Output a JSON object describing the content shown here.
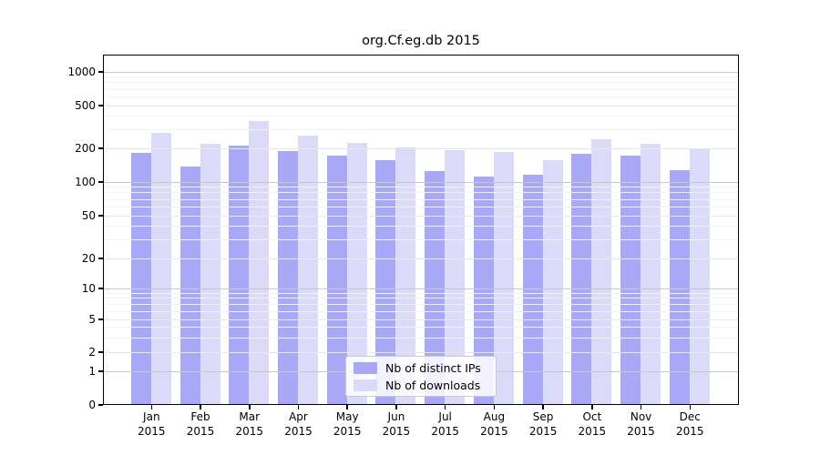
{
  "chart_data": {
    "type": "bar",
    "title": "org.Cf.eg.db 2015",
    "categories": [
      "Jan",
      "Feb",
      "Mar",
      "Apr",
      "May",
      "Jun",
      "Jul",
      "Aug",
      "Sep",
      "Oct",
      "Nov",
      "Dec"
    ],
    "year_label": "2015",
    "series": [
      {
        "name": "Nb of distinct IPs",
        "color": "#a8a8f7",
        "values": [
          180,
          134,
          210,
          184,
          168,
          155,
          123,
          110,
          114,
          175,
          170,
          125
        ]
      },
      {
        "name": "Nb of downloads",
        "color": "#dbdbf9",
        "values": [
          272,
          218,
          350,
          258,
          222,
          202,
          188,
          183,
          155,
          238,
          218,
          191
        ]
      }
    ],
    "yticks": [
      0,
      1,
      2,
      5,
      10,
      20,
      50,
      100,
      200,
      500,
      1000
    ],
    "xlabel": "",
    "ylabel": "",
    "yscale": "symlog",
    "ylim": [
      0,
      1400
    ],
    "grid": "on",
    "legend_position": "inside lower center"
  },
  "colors": {
    "decade_gridline": "#c8c8c8",
    "labeled_gridline": "#e8e8e8",
    "minor_gridline": "#f2f2f2",
    "spine": "#000000"
  }
}
